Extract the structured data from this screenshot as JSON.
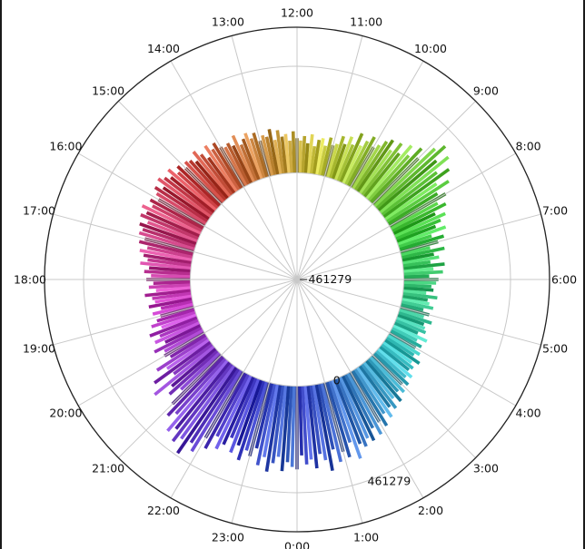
{
  "chart_data": {
    "type": "bar",
    "projection": "polar",
    "direction": "clockwise",
    "zero_location": "bottom",
    "hour_labels": [
      "0:00",
      "1:00",
      "2:00",
      "3:00",
      "4:00",
      "5:00",
      "6:00",
      "7:00",
      "8:00",
      "9:00",
      "10:00",
      "11:00",
      "12:00",
      "13:00",
      "14:00",
      "15:00",
      "16:00",
      "17:00",
      "18:00",
      "19:00",
      "20:00",
      "21:00",
      "22:00",
      "23:00"
    ],
    "radial_tick_labels": [
      "−461279",
      "0",
      "461279"
    ],
    "radial_ticks": [
      -461279,
      0,
      461279
    ],
    "rlim": [
      -461279,
      630000
    ],
    "grid": true,
    "bins_per_hour": 10,
    "values": [
      360000,
      300000,
      340000,
      320000,
      360000,
      300000,
      330000,
      380000,
      290000,
      350000,
      310000,
      340000,
      280000,
      360000,
      300000,
      320000,
      290000,
      310000,
      260000,
      300000,
      250000,
      280000,
      230000,
      260000,
      220000,
      240000,
      200000,
      230000,
      190000,
      210000,
      180000,
      200000,
      170000,
      190000,
      160000,
      170000,
      150000,
      180000,
      140000,
      160000,
      130000,
      150000,
      120000,
      160000,
      110000,
      140000,
      130000,
      120000,
      150000,
      110000,
      130000,
      100000,
      140000,
      120000,
      110000,
      150000,
      100000,
      130000,
      120000,
      140000,
      150000,
      110000,
      170000,
      130000,
      180000,
      120000,
      160000,
      140000,
      190000,
      130000,
      170000,
      200000,
      150000,
      220000,
      180000,
      210000,
      240000,
      200000,
      260000,
      230000,
      280000,
      250000,
      320000,
      270000,
      350000,
      300000,
      380000,
      330000,
      400000,
      360000,
      280000,
      320000,
      260000,
      300000,
      240000,
      280000,
      230000,
      270000,
      250000,
      220000,
      200000,
      240000,
      210000,
      180000,
      230000,
      170000,
      200000,
      160000,
      190000,
      150000,
      140000,
      170000,
      130000,
      160000,
      150000,
      120000,
      170000,
      130000,
      160000,
      140000,
      150000,
      180000,
      140000,
      170000,
      160000,
      190000,
      150000,
      200000,
      170000,
      180000,
      160000,
      200000,
      180000,
      210000,
      190000,
      170000,
      220000,
      180000,
      200000,
      190000,
      200000,
      230000,
      210000,
      240000,
      190000,
      220000,
      250000,
      210000,
      230000,
      240000,
      220000,
      250000,
      230000,
      270000,
      240000,
      260000,
      280000,
      240000,
      270000,
      250000,
      230000,
      260000,
      240000,
      280000,
      250000,
      270000,
      230000,
      260000,
      240000,
      250000,
      220000,
      240000,
      200000,
      230000,
      210000,
      190000,
      220000,
      180000,
      200000,
      170000,
      190000,
      160000,
      180000,
      150000,
      200000,
      170000,
      160000,
      190000,
      140000,
      180000,
      150000,
      170000,
      200000,
      160000,
      220000,
      180000,
      210000,
      170000,
      230000,
      190000,
      200000,
      180000,
      260000,
      220000,
      300000,
      210000,
      330000,
      250000,
      280000,
      230000,
      300000,
      350000,
      320000,
      400000,
      370000,
      420000,
      390000,
      450000,
      380000,
      410000,
      330000,
      370000,
      300000,
      350000,
      320000,
      280000,
      340000,
      300000,
      360000,
      310000,
      330000,
      290000,
      360000,
      320000,
      380000,
      340000,
      310000,
      370000,
      330000,
      350000
    ]
  }
}
